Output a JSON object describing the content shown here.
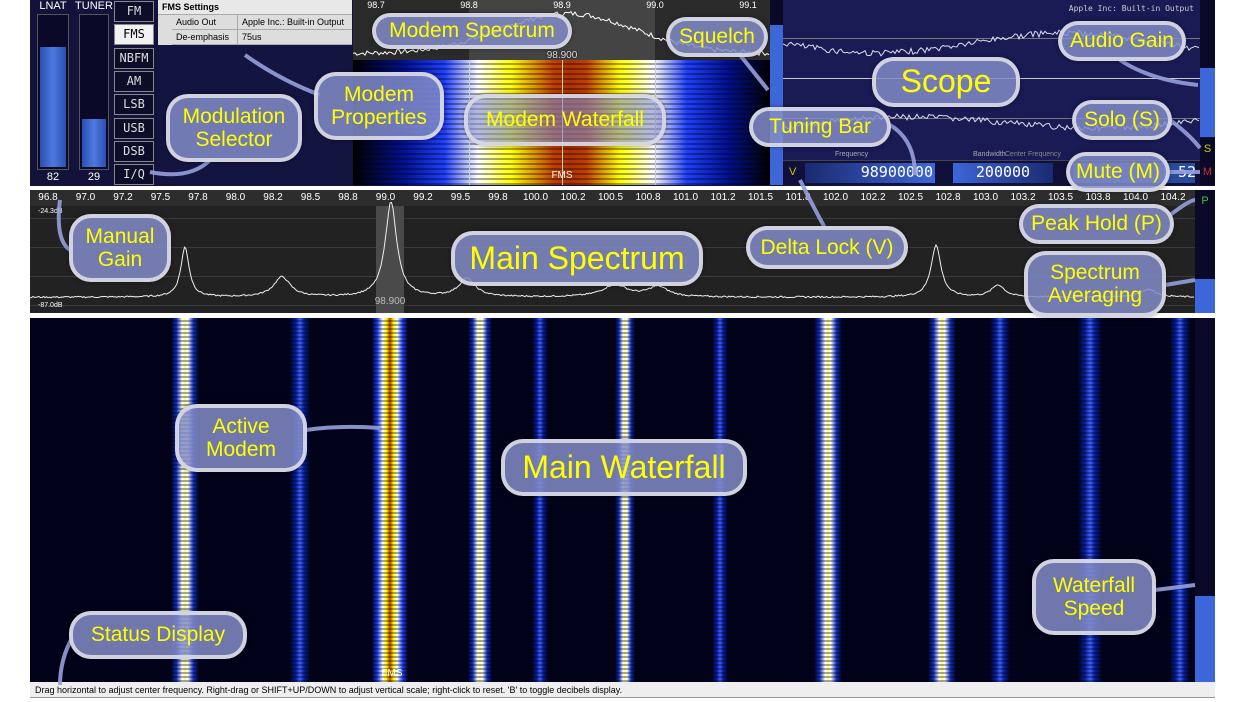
{
  "gain": {
    "lnat_label": "LNAT",
    "lnat_value": "82",
    "lnat_level": 0.82,
    "tuner_label": "TUNER",
    "tuner_value": "29",
    "tuner_level": 0.35
  },
  "modulations": [
    {
      "label": "FM",
      "active": false
    },
    {
      "label": "FMS",
      "active": true
    },
    {
      "label": "NBFM",
      "active": false
    },
    {
      "label": "AM",
      "active": false
    },
    {
      "label": "LSB",
      "active": false
    },
    {
      "label": "USB",
      "active": false
    },
    {
      "label": "DSB",
      "active": false
    },
    {
      "label": "I/Q",
      "active": false
    }
  ],
  "modem_properties": {
    "title": "FMS Settings",
    "rows": [
      {
        "key": "Audio Out",
        "value": "Apple Inc.: Built-in Output"
      },
      {
        "key": "De-emphasis",
        "value": "75us"
      }
    ]
  },
  "modem_spectrum": {
    "ticks": [
      "98.7",
      "98.8",
      "98.9",
      "99.0",
      "99.1"
    ],
    "center_label": "98.900"
  },
  "modem_waterfall": {
    "label": "FMS"
  },
  "scope": {
    "device_label": "Apple Inc: Built-in Output"
  },
  "tuning": {
    "delta_lock": "V",
    "frequency_label": "Frequency",
    "frequency": "98900000",
    "bandwidth_label": "Bandwidth",
    "bandwidth": "200000",
    "center_label": "Center Frequency",
    "center_value": "52",
    "solo": "S",
    "mute": "M",
    "peak_hold": "P"
  },
  "main_spectrum": {
    "top_db": "-24.3dB",
    "bottom_db": "-87.0dB",
    "ticks": [
      "96.8",
      "97.0",
      "97.2",
      "97.5",
      "97.8",
      "98.0",
      "98.2",
      "98.5",
      "98.8",
      "99.0",
      "99.2",
      "99.5",
      "99.8",
      "100.0",
      "100.2",
      "100.5",
      "100.8",
      "101.0",
      "101.2",
      "101.5",
      "101.8",
      "102.0",
      "102.2",
      "102.5",
      "102.8",
      "103.0",
      "103.2",
      "103.5",
      "103.8",
      "104.0",
      "104.2"
    ],
    "active_label": "98.900"
  },
  "main_waterfall": {
    "modem_label": "FMS"
  },
  "status": "Drag horizontal to adjust center frequency. Right-drag or SHIFT+UP/DOWN to adjust vertical scale; right-click to reset. 'B' to toggle decibels display.",
  "callouts": {
    "modem_spectrum": "Modem Spectrum",
    "squelch": "Squelch",
    "audio_gain": "Audio Gain",
    "modem_properties": "Modem Properties",
    "scope": "Scope",
    "modulation_selector": "Modulation Selector",
    "modem_waterfall": "Modem Waterfall",
    "tuning_bar": "Tuning Bar",
    "solo": "Solo (S)",
    "mute": "Mute (M)",
    "peak_hold": "Peak Hold (P)",
    "manual_gain": "Manual Gain",
    "main_spectrum": "Main Spectrum",
    "delta_lock": "Delta Lock (V)",
    "spectrum_averaging": "Spectrum Averaging",
    "active_modem": "Active Modem",
    "main_waterfall": "Main Waterfall",
    "waterfall_speed": "Waterfall Speed",
    "status_display": "Status Display"
  },
  "colors": {
    "accent_blue": "#3d66d8",
    "callout_text": "#ffff00",
    "panel_bg": "#12123a"
  }
}
